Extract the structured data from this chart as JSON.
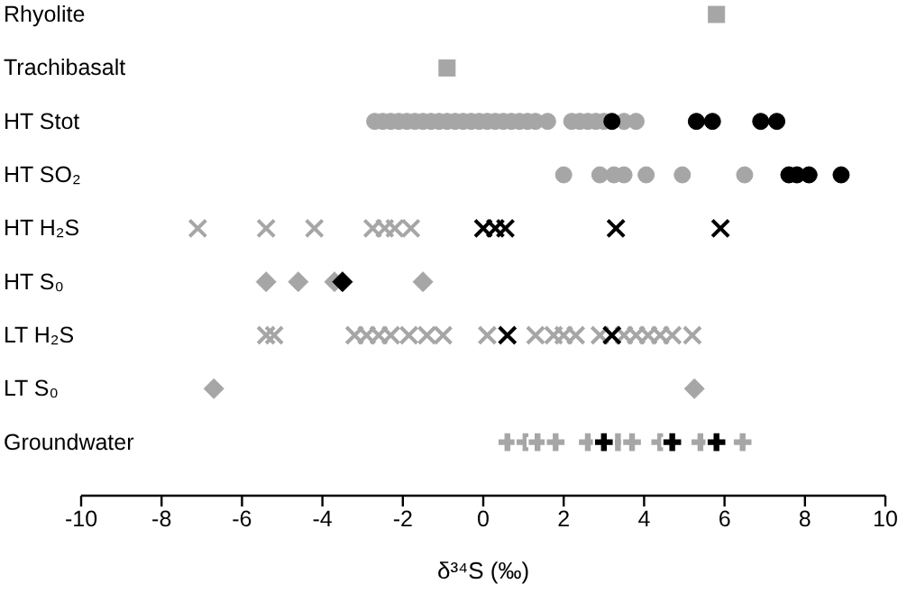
{
  "chart_data": {
    "type": "scatter",
    "orientation": "horizontal",
    "xlabel": "δ³⁴S (‰)",
    "categories": [
      "Rhyolite",
      "Trachibasalt",
      "HT Stot",
      "HT SO₂",
      "HT H₂S",
      "HT S₀",
      "LT H₂S",
      "LT S₀",
      "Groundwater"
    ],
    "xlim": [
      -10,
      10
    ],
    "xticks": [
      -10,
      -8,
      -6,
      -4,
      -2,
      0,
      2,
      4,
      6,
      8,
      10
    ],
    "grid": false,
    "series": [
      {
        "color": "#a6a6a6",
        "marker": "square",
        "x": [
          "Rhyolite"
        ],
        "values": [
          5.8
        ]
      },
      {
        "color": "#a6a6a6",
        "marker": "square",
        "x": [
          "Trachibasalt"
        ],
        "values": [
          -0.9
        ]
      },
      {
        "color": "#a6a6a6",
        "marker": "circle",
        "x": [
          "HT Stot",
          "HT Stot",
          "HT Stot",
          "HT Stot",
          "HT Stot",
          "HT Stot",
          "HT Stot",
          "HT Stot",
          "HT Stot",
          "HT Stot",
          "HT Stot",
          "HT Stot",
          "HT Stot",
          "HT Stot",
          "HT Stot",
          "HT Stot",
          "HT Stot",
          "HT Stot",
          "HT Stot",
          "HT Stot",
          "HT Stot",
          "HT Stot",
          "HT Stot",
          "HT Stot",
          "HT Stot",
          "HT Stot",
          "HT Stot",
          "HT Stot",
          "HT Stot"
        ],
        "values": [
          -2.7,
          -2.5,
          -2.3,
          -2.1,
          -1.9,
          -1.7,
          -1.5,
          -1.3,
          -1.1,
          -0.9,
          -0.7,
          -0.5,
          -0.3,
          -0.1,
          0.1,
          0.3,
          0.5,
          0.7,
          0.9,
          1.1,
          1.3,
          1.6,
          2.2,
          2.4,
          2.6,
          2.8,
          3.0,
          3.5,
          3.8
        ]
      },
      {
        "color": "#000000",
        "marker": "circle",
        "x": [
          "HT Stot",
          "HT Stot",
          "HT Stot",
          "HT Stot",
          "HT Stot"
        ],
        "values": [
          3.2,
          5.3,
          5.7,
          6.9,
          7.3
        ]
      },
      {
        "color": "#a6a6a6",
        "marker": "circle",
        "x": [
          "HT SO₂",
          "HT SO₂",
          "HT SO₂",
          "HT SO₂",
          "HT SO₂",
          "HT SO₂",
          "HT SO₂"
        ],
        "values": [
          2.0,
          2.9,
          3.25,
          3.5,
          4.05,
          4.95,
          6.5
        ]
      },
      {
        "color": "#000000",
        "marker": "circle",
        "x": [
          "HT SO₂",
          "HT SO₂",
          "HT SO₂",
          "HT SO₂"
        ],
        "values": [
          7.6,
          7.8,
          8.1,
          8.9
        ]
      },
      {
        "color": "#a6a6a6",
        "marker": "cross",
        "x": [
          "HT H₂S",
          "HT H₂S",
          "HT H₂S",
          "HT H₂S",
          "HT H₂S",
          "HT H₂S",
          "HT H₂S"
        ],
        "values": [
          -7.1,
          -5.4,
          -4.2,
          -2.75,
          -2.45,
          -2.2,
          -1.8
        ]
      },
      {
        "color": "#000000",
        "marker": "cross",
        "x": [
          "HT H₂S",
          "HT H₂S",
          "HT H₂S",
          "HT H₂S",
          "HT H₂S"
        ],
        "values": [
          0.0,
          0.3,
          0.55,
          3.3,
          5.9
        ]
      },
      {
        "color": "#a6a6a6",
        "marker": "diamond",
        "x": [
          "HT S₀",
          "HT S₀",
          "HT S₀",
          "HT S₀"
        ],
        "values": [
          -5.4,
          -4.6,
          -3.7,
          -1.5
        ]
      },
      {
        "color": "#000000",
        "marker": "diamond",
        "x": [
          "HT S₀"
        ],
        "values": [
          -3.5
        ]
      },
      {
        "color": "#a6a6a6",
        "marker": "cross",
        "x": [
          "LT H₂S",
          "LT H₂S",
          "LT H₂S",
          "LT H₂S",
          "LT H₂S",
          "LT H₂S",
          "LT H₂S",
          "LT H₂S",
          "LT H₂S",
          "LT H₂S",
          "LT H₂S",
          "LT H₂S",
          "LT H₂S",
          "LT H₂S",
          "LT H₂S",
          "LT H₂S",
          "LT H₂S",
          "LT H₂S",
          "LT H₂S",
          "LT H₂S",
          "LT H₂S"
        ],
        "values": [
          -5.4,
          -5.2,
          -3.2,
          -2.9,
          -2.6,
          -2.3,
          -1.85,
          -1.4,
          -1.0,
          0.1,
          1.3,
          1.75,
          2.0,
          2.3,
          2.9,
          3.5,
          3.8,
          4.1,
          4.4,
          4.7,
          5.2
        ]
      },
      {
        "color": "#000000",
        "marker": "cross",
        "x": [
          "LT H₂S",
          "LT H₂S"
        ],
        "values": [
          0.6,
          3.2
        ]
      },
      {
        "color": "#a6a6a6",
        "marker": "diamond",
        "x": [
          "LT S₀",
          "LT S₀"
        ],
        "values": [
          -6.7,
          5.25
        ]
      },
      {
        "color": "#a6a6a6",
        "marker": "plus",
        "x": [
          "Groundwater",
          "Groundwater",
          "Groundwater",
          "Groundwater",
          "Groundwater",
          "Groundwater",
          "Groundwater",
          "Groundwater",
          "Groundwater",
          "Groundwater"
        ],
        "values": [
          0.6,
          1.05,
          1.35,
          1.8,
          2.6,
          3.35,
          3.7,
          4.4,
          5.4,
          6.45
        ]
      },
      {
        "color": "#000000",
        "marker": "plus",
        "x": [
          "Groundwater",
          "Groundwater",
          "Groundwater"
        ],
        "values": [
          3.0,
          4.7,
          5.8
        ]
      }
    ]
  }
}
